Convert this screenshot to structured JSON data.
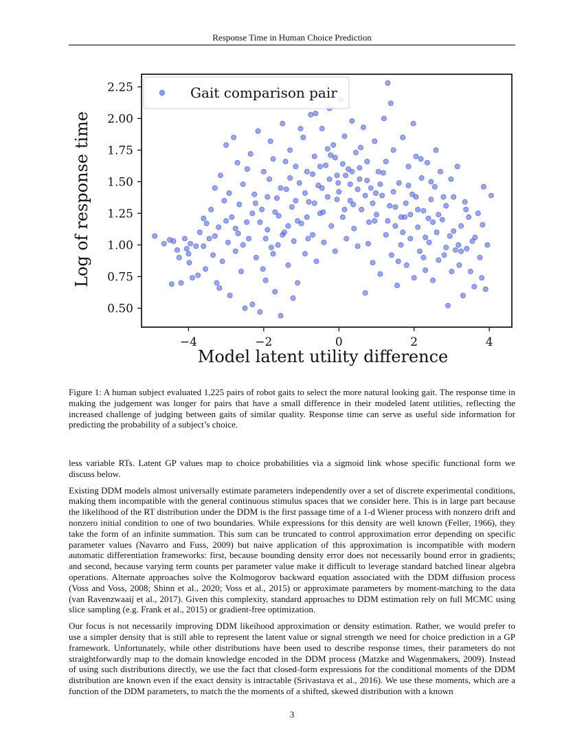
{
  "header": {
    "running_title": "Response Time in Human Choice Prediction"
  },
  "chart_data": {
    "type": "scatter",
    "xlabel": "Model latent utility difference",
    "ylabel": "Log of response time",
    "xlim": [
      -5.25,
      4.6
    ],
    "ylim": [
      0.35,
      2.35
    ],
    "xticks": [
      -4,
      -2,
      0,
      2,
      4
    ],
    "xtick_labels": [
      "−4",
      "−2",
      "0",
      "2",
      "4"
    ],
    "yticks": [
      0.5,
      0.75,
      1.0,
      1.25,
      1.5,
      1.75,
      2.0,
      2.25
    ],
    "ytick_labels": [
      "0.50",
      "0.75",
      "1.00",
      "1.25",
      "1.50",
      "1.75",
      "2.00",
      "2.25"
    ],
    "grid": false,
    "legend_position": "top-left",
    "marker_color": "#4a5fd6",
    "series": [
      {
        "name": "Gait comparison pair",
        "points": [
          [
            -4.9,
            1.07
          ],
          [
            -4.5,
            1.04
          ],
          [
            -4.45,
            0.69
          ],
          [
            -4.4,
            1.03
          ],
          [
            -4.3,
            0.96
          ],
          [
            -4.25,
            0.9
          ],
          [
            -4.2,
            0.7
          ],
          [
            -4.1,
            1.05
          ],
          [
            -4.05,
            0.97
          ],
          [
            -4.0,
            0.93
          ],
          [
            -3.95,
            1.01
          ],
          [
            -3.9,
            0.74
          ],
          [
            -3.8,
            0.99
          ],
          [
            -3.75,
            0.76
          ],
          [
            -3.7,
            1.1
          ],
          [
            -3.6,
            1.21
          ],
          [
            -3.55,
            0.81
          ],
          [
            -3.45,
            1.05
          ],
          [
            -3.4,
            1.28
          ],
          [
            -3.35,
            0.92
          ],
          [
            -3.3,
            1.45
          ],
          [
            -3.25,
            0.7
          ],
          [
            -3.2,
            1.14
          ],
          [
            -3.15,
            1.55
          ],
          [
            -3.1,
            0.87
          ],
          [
            -3.05,
            1.35
          ],
          [
            -3.0,
            1.79
          ],
          [
            -2.95,
            1.02
          ],
          [
            -2.9,
            0.6
          ],
          [
            -2.85,
            1.22
          ],
          [
            -2.8,
            1.85
          ],
          [
            -2.75,
            0.95
          ],
          [
            -2.7,
            1.65
          ],
          [
            -2.65,
            1.32
          ],
          [
            -2.6,
            0.79
          ],
          [
            -2.55,
            1.48
          ],
          [
            -2.5,
            0.5
          ],
          [
            -2.45,
            1.18
          ],
          [
            -2.4,
            1.05
          ],
          [
            -2.35,
            1.72
          ],
          [
            -2.3,
            0.53
          ],
          [
            -2.25,
            1.4
          ],
          [
            -2.2,
            0.9
          ],
          [
            -2.15,
            1.9
          ],
          [
            -2.1,
            0.47
          ],
          [
            -2.05,
            1.28
          ],
          [
            -2.0,
            1.58
          ],
          [
            -1.95,
            0.72
          ],
          [
            -1.9,
            1.12
          ],
          [
            -1.85,
            1.52
          ],
          [
            -1.8,
            0.98
          ],
          [
            -1.75,
            1.68
          ],
          [
            -1.7,
            0.63
          ],
          [
            -1.65,
            1.37
          ],
          [
            -1.6,
            1.23
          ],
          [
            -1.55,
            0.44
          ],
          [
            -1.5,
            1.96
          ],
          [
            -1.45,
            1.1
          ],
          [
            -1.4,
            1.44
          ],
          [
            -1.35,
            0.84
          ],
          [
            -1.3,
            1.75
          ],
          [
            -1.25,
            1.3
          ],
          [
            -1.2,
            1.03
          ],
          [
            -1.15,
            1.62
          ],
          [
            -1.1,
            0.7
          ],
          [
            -1.05,
            1.49
          ],
          [
            -1.0,
            1.17
          ],
          [
            -0.95,
            1.85
          ],
          [
            -0.9,
            0.93
          ],
          [
            -0.85,
            1.58
          ],
          [
            -0.8,
            1.34
          ],
          [
            -0.75,
            2.03
          ],
          [
            -0.7,
            1.08
          ],
          [
            -0.65,
            1.7
          ],
          [
            -0.6,
            0.87
          ],
          [
            -0.55,
            1.47
          ],
          [
            -0.5,
            1.25
          ],
          [
            -0.45,
            1.92
          ],
          [
            -0.4,
            1.02
          ],
          [
            -0.35,
            1.63
          ],
          [
            -0.3,
            1.38
          ],
          [
            -0.25,
            2.08
          ],
          [
            -0.2,
            1.15
          ],
          [
            -0.15,
            1.79
          ],
          [
            -0.1,
            0.95
          ],
          [
            -0.05,
            1.55
          ],
          [
            0.0,
            1.42
          ],
          [
            0.05,
            2.15
          ],
          [
            0.1,
            1.22
          ],
          [
            0.15,
            1.86
          ],
          [
            0.2,
            1.05
          ],
          [
            0.25,
            1.6
          ],
          [
            0.3,
            1.35
          ],
          [
            0.35,
            1.98
          ],
          [
            0.4,
            1.13
          ],
          [
            0.45,
            1.73
          ],
          [
            0.5,
            0.99
          ],
          [
            0.55,
            1.52
          ],
          [
            0.6,
            1.28
          ],
          [
            0.65,
            1.93
          ],
          [
            0.7,
            0.62
          ],
          [
            0.75,
            1.66
          ],
          [
            0.8,
            1.18
          ],
          [
            0.85,
            1.45
          ],
          [
            0.9,
            0.86
          ],
          [
            0.95,
            1.82
          ],
          [
            1.0,
            1.24
          ],
          [
            1.05,
            1.58
          ],
          [
            1.1,
            0.77
          ],
          [
            1.15,
            1.39
          ],
          [
            1.2,
            2.0
          ],
          [
            1.25,
            1.08
          ],
          [
            1.3,
            2.28
          ],
          [
            1.35,
            1.31
          ],
          [
            1.4,
            0.92
          ],
          [
            1.45,
            1.75
          ],
          [
            1.5,
            1.15
          ],
          [
            1.55,
            0.68
          ],
          [
            1.6,
            1.49
          ],
          [
            1.65,
            1.0
          ],
          [
            1.7,
            1.85
          ],
          [
            1.75,
            1.22
          ],
          [
            1.8,
            0.84
          ],
          [
            1.85,
            1.62
          ],
          [
            1.9,
            1.05
          ],
          [
            1.95,
            1.4
          ],
          [
            2.0,
            0.74
          ],
          [
            2.05,
            1.7
          ],
          [
            2.1,
            1.14
          ],
          [
            2.15,
            0.95
          ],
          [
            2.2,
            1.53
          ],
          [
            2.25,
            1.27
          ],
          [
            2.3,
            0.8
          ],
          [
            2.35,
            1.65
          ],
          [
            2.4,
            1.02
          ],
          [
            2.45,
            1.36
          ],
          [
            2.5,
            0.72
          ],
          [
            2.55,
            1.46
          ],
          [
            2.6,
            1.1
          ],
          [
            2.65,
            0.88
          ],
          [
            2.7,
            1.58
          ],
          [
            2.75,
            1.2
          ],
          [
            2.8,
            0.92
          ],
          [
            2.85,
            1.31
          ],
          [
            2.9,
            0.52
          ],
          [
            2.95,
            1.07
          ],
          [
            3.0,
            0.79
          ],
          [
            3.05,
            1.38
          ],
          [
            3.1,
            0.96
          ],
          [
            3.15,
            1.62
          ],
          [
            3.2,
            0.84
          ],
          [
            3.25,
            1.15
          ],
          [
            3.3,
            0.6
          ],
          [
            3.35,
            1.34
          ],
          [
            3.4,
            0.97
          ],
          [
            3.45,
            1.22
          ],
          [
            3.5,
            0.79
          ],
          [
            3.55,
            1.03
          ],
          [
            3.6,
            0.67
          ],
          [
            3.7,
            1.25
          ],
          [
            3.75,
            0.9
          ],
          [
            3.8,
            0.74
          ],
          [
            3.85,
            1.46
          ],
          [
            3.9,
            0.65
          ],
          [
            3.95,
            1.0
          ],
          [
            4.05,
            1.39
          ],
          [
            -4.65,
            1.01
          ],
          [
            -3.98,
            0.86
          ],
          [
            -3.52,
            1.17
          ],
          [
            -3.18,
            0.66
          ],
          [
            -2.92,
            1.41
          ],
          [
            -2.68,
            1.09
          ],
          [
            -2.44,
            1.6
          ],
          [
            -2.22,
            1.33
          ],
          [
            -2.02,
            0.81
          ],
          [
            -1.82,
            1.82
          ],
          [
            -1.62,
            1.0
          ],
          [
            -1.42,
            1.66
          ],
          [
            -1.22,
            0.58
          ],
          [
            -1.02,
            1.92
          ],
          [
            -0.82,
            1.05
          ],
          [
            -0.62,
            2.04
          ],
          [
            -0.42,
            1.26
          ],
          [
            -0.22,
            1.71
          ],
          [
            -0.02,
            1.49
          ],
          [
            0.18,
            1.55
          ],
          [
            0.38,
            1.32
          ],
          [
            0.58,
            1.77
          ],
          [
            0.78,
            1.01
          ],
          [
            0.98,
            1.41
          ],
          [
            1.18,
            1.57
          ],
          [
            1.38,
            2.12
          ],
          [
            1.58,
            0.87
          ],
          [
            1.78,
            1.33
          ],
          [
            1.98,
            1.96
          ],
          [
            2.18,
            1.68
          ],
          [
            2.38,
            1.21
          ],
          [
            2.58,
            1.75
          ],
          [
            2.78,
            1.38
          ],
          [
            2.98,
            1.52
          ],
          [
            3.18,
            1.0
          ],
          [
            3.38,
            1.28
          ],
          [
            3.62,
            1.06
          ],
          [
            3.82,
            1.16
          ],
          [
            -2.1,
            1.18
          ],
          [
            -1.9,
            1.38
          ],
          [
            -1.7,
            1.26
          ],
          [
            -1.5,
            1.08
          ],
          [
            -1.3,
            1.53
          ],
          [
            -1.1,
            1.19
          ],
          [
            -0.9,
            1.41
          ],
          [
            -0.7,
            1.56
          ],
          [
            -0.5,
            1.62
          ],
          [
            -0.3,
            1.76
          ],
          [
            -0.1,
            1.69
          ],
          [
            0.1,
            1.64
          ],
          [
            0.3,
            1.48
          ],
          [
            0.5,
            1.44
          ],
          [
            0.7,
            1.39
          ],
          [
            0.9,
            1.33
          ],
          [
            1.1,
            1.48
          ],
          [
            1.3,
            1.19
          ],
          [
            1.5,
            1.3
          ],
          [
            1.7,
            1.1
          ],
          [
            1.9,
            1.24
          ],
          [
            2.1,
            1.28
          ],
          [
            2.3,
            1.06
          ],
          [
            2.5,
            1.18
          ],
          [
            -0.85,
            1.22
          ],
          [
            -0.65,
            1.33
          ],
          [
            -0.45,
            1.45
          ],
          [
            -0.25,
            1.52
          ],
          [
            -0.05,
            1.36
          ],
          [
            0.15,
            1.28
          ],
          [
            0.35,
            1.58
          ],
          [
            0.55,
            1.61
          ],
          [
            0.75,
            1.51
          ],
          [
            0.95,
            1.19
          ],
          [
            -1.15,
            1.35
          ],
          [
            -1.35,
            1.15
          ],
          [
            -1.55,
            1.45
          ],
          [
            -1.75,
            0.93
          ],
          [
            -1.95,
            1.05
          ],
          [
            -2.3,
            1.25
          ],
          [
            -2.55,
            1.0
          ],
          [
            -2.75,
            1.13
          ],
          [
            -3.0,
            1.19
          ],
          [
            -3.3,
            1.07
          ],
          [
            -3.6,
            0.99
          ],
          [
            1.25,
            1.66
          ],
          [
            1.45,
            1.42
          ],
          [
            1.65,
            1.22
          ],
          [
            1.85,
            1.47
          ],
          [
            2.05,
            1.38
          ],
          [
            2.25,
            0.9
          ],
          [
            2.45,
            1.5
          ],
          [
            2.65,
            1.24
          ],
          [
            2.85,
            0.98
          ],
          [
            3.05,
            1.11
          ],
          [
            3.25,
            0.95
          ]
        ]
      }
    ]
  },
  "figure": {
    "caption": "Figure 1: A human subject evaluated 1,225 pairs of robot gaits to select the more natural looking gait. The response time in making the judgement was longer for pairs that have a small difference in their modeled latent utilities, reflecting the increased challenge of judging between gaits of similar quality. Response time can serve as useful side information for predicting the probability of a subject’s choice."
  },
  "body": {
    "paragraphs": [
      "less variable RTs. Latent GP values map to choice probabilities via a sigmoid link whose specific functional form we discuss below.",
      "Existing DDM models almost universally estimate parameters independently over a set of discrete experimental conditions, making them incompatible with the general continuous stimulus spaces that we consider here. This is in large part because the likelihood of the RT distribution under the DDM is the first passage time of a 1-d Wiener process with nonzero drift and nonzero initial condition to one of two boundaries. While expressions for this density are well known (Feller, 1966), they take the form of an infinite summation. This sum can be truncated to control approximation error depending on specific parameter values (Navarro and Fuss, 2009) but naive application of this approximation is incompatible with modern automatic differentiation frameworks: first, because bounding density error does not necessarily bound error in gradients; and second, because varying term counts per parameter value make it difficult to leverage standard batched linear algebra operations. Alternate approaches solve the Kolmogorov backward equation associated with the DDM diffusion process (Voss and Voss, 2008; Shinn et al., 2020; Voss et al., 2015) or approximate parameters by moment-matching to the data (van Ravenzwaaij et al., 2017). Given this complexity, standard approaches to DDM estimation rely on full MCMC using slice sampling (e.g. Frank et al., 2015) or gradient-free optimization.",
      "Our focus is not necessarily improving DDM likeihood approximation or density estimation. Rather, we would prefer to use a simpler density that is still able to represent the latent value or signal strength we need for choice prediction in a GP framework. Unfortunately, while other distributions have been used to describe response times, their parameters do not straightforwardly map to the domain knowledge encoded in the DDM process (Matzke and Wagenmakers, 2009). Instead of using such distributions directly, we use the fact that closed-form expressions for the conditional moments of the DDM distribution are known even if the exact density is intractable (Srivastava et al., 2016). We use these moments, which are a function of the DDM parameters, to match the the moments of a shifted, skewed distribution with a known"
    ]
  },
  "footer": {
    "page_number": "3"
  }
}
